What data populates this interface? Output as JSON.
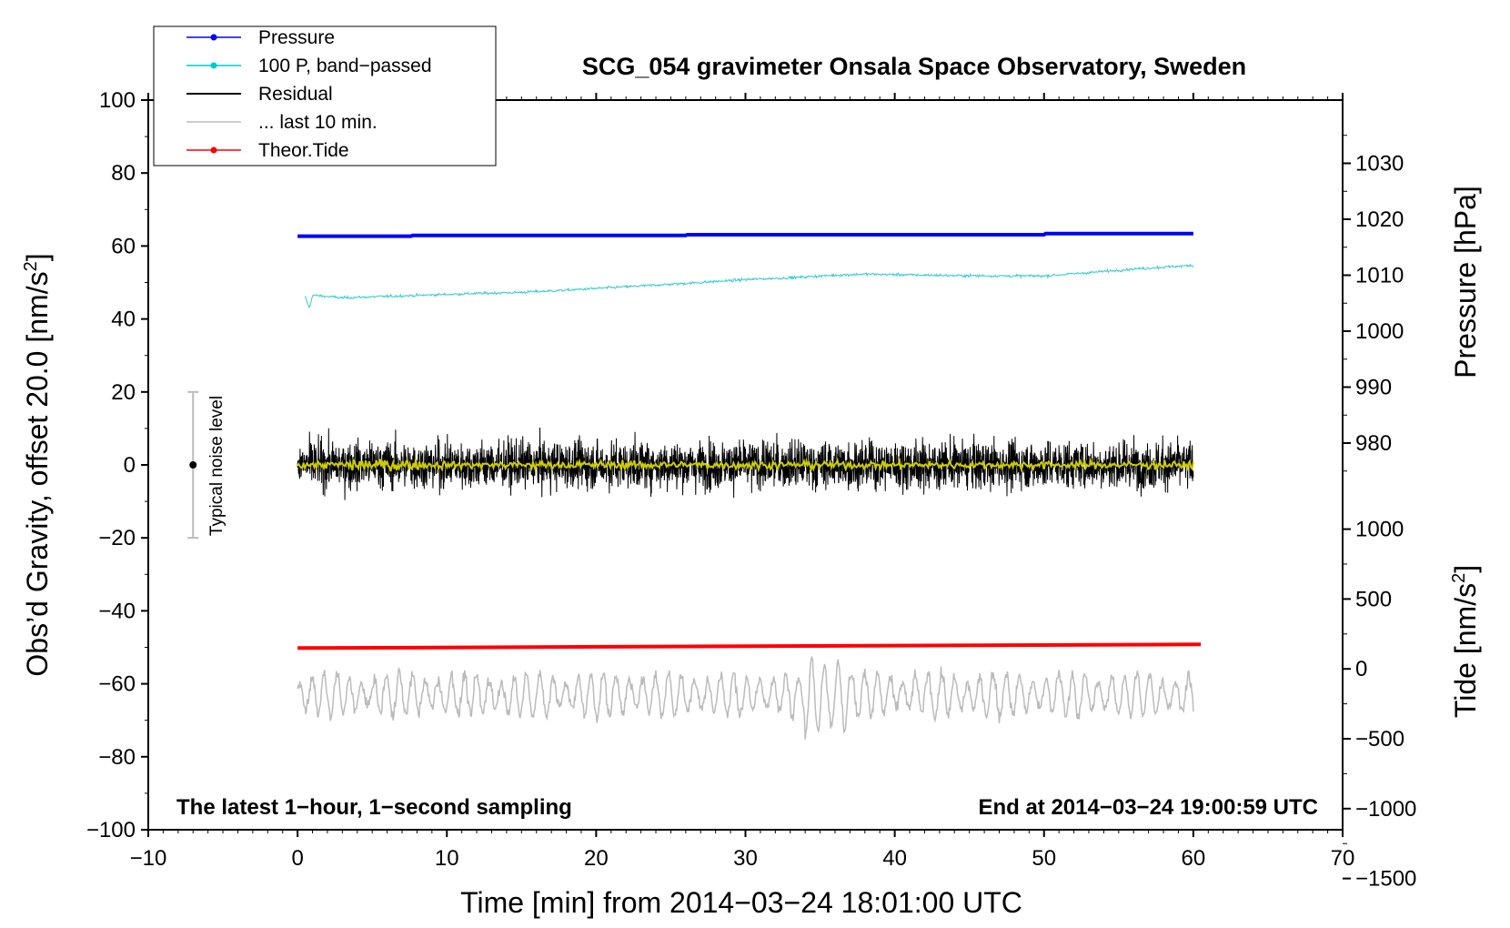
{
  "chart_data": {
    "type": "line",
    "title": "SCG_054 gravimeter Onsala Space Observatory, Sweden",
    "xlabel": "Time [min] from 2014−03−24 18:01:00 UTC",
    "ylabel_left": "Obs’d Gravity, offset 20.0 [nm/s",
    "ylabel_left_sup": "2",
    "ylabel_left_end": "]",
    "ylabel_pressure": "Pressure [hPa]",
    "ylabel_tide": "Tide [nm/s",
    "ylabel_tide_sup": "2",
    "ylabel_tide_end": "]",
    "xlim": [
      -10,
      70
    ],
    "ylim": [
      -100,
      100
    ],
    "x_ticks": [
      "−10",
      "0",
      "10",
      "20",
      "30",
      "40",
      "50",
      "60",
      "70"
    ],
    "y_ticks": [
      "−100",
      "−80",
      "−60",
      "−40",
      "−20",
      "0",
      "20",
      "40",
      "60",
      "80",
      "100"
    ],
    "pressure_axis": {
      "ticks": [
        "980",
        "990",
        "1000",
        "1010",
        "1020",
        "1030"
      ],
      "values": [
        980,
        990,
        1000,
        1010,
        1020,
        1030
      ]
    },
    "tide_axis": {
      "ticks": [
        "−1500",
        "−1000",
        "−500",
        "0",
        "500",
        "1000"
      ],
      "values": [
        -1500,
        -1000,
        -500,
        0,
        500,
        1000
      ]
    },
    "note_left": "The latest 1−hour, 1−second sampling",
    "note_right": "End at 2014−03−24 19:00:59 UTC",
    "noise_label": "Typical noise level",
    "noise_bar": {
      "x": -7,
      "center": 0,
      "low": -20,
      "high": 20
    },
    "legend": [
      {
        "label": "Pressure",
        "color": "#0000ff",
        "marker": true
      },
      {
        "label": "100 P, band−passed",
        "color": "#00cccc",
        "marker": true
      },
      {
        "label": "Residual",
        "color": "#000000",
        "marker": false
      },
      {
        "label": "... last 10 min.",
        "color": "#bbbbbb",
        "marker": false
      },
      {
        "label": "Theor.Tide",
        "color": "#ff0000",
        "marker": true
      }
    ],
    "series": [
      {
        "name": "Pressure",
        "color": "#0000ff",
        "x": [
          0,
          7.6,
          7.7,
          26,
          26.1,
          50,
          50.1,
          60
        ],
        "y": [
          62.7,
          62.7,
          62.9,
          62.9,
          63.1,
          63.1,
          63.4,
          63.4
        ]
      },
      {
        "name": "100 P, band-passed",
        "color": "#33cccc",
        "x": [
          0.5,
          0.8,
          1,
          3,
          6,
          9,
          12,
          15,
          18,
          21,
          24,
          27,
          30,
          33,
          36,
          38,
          41,
          44,
          47,
          50,
          53,
          56,
          60
        ],
        "y": [
          46,
          43,
          46.5,
          45.8,
          46.2,
          46.6,
          47,
          47.3,
          47.9,
          48.6,
          49.3,
          50,
          50.8,
          51.3,
          52,
          52.3,
          52.1,
          51.9,
          51.8,
          51.8,
          52.7,
          53.7,
          54.7
        ]
      },
      {
        "name": "Residual",
        "color": "#000000",
        "x_range": [
          0,
          60
        ],
        "center": 0,
        "amplitude": 10
      },
      {
        "name": "Residual smoothed",
        "color": "#cccc00",
        "x_range": [
          0,
          60
        ],
        "center": 0,
        "amplitude": 1.5
      },
      {
        "name": "... last 10 min.",
        "color": "#bbbbbb",
        "x_range": [
          0,
          60
        ],
        "center": -63,
        "amplitude": 10
      },
      {
        "name": "Theor.Tide",
        "color": "#ff0000",
        "x": [
          0,
          60.5
        ],
        "y": [
          -50.2,
          -49.2
        ]
      }
    ]
  }
}
